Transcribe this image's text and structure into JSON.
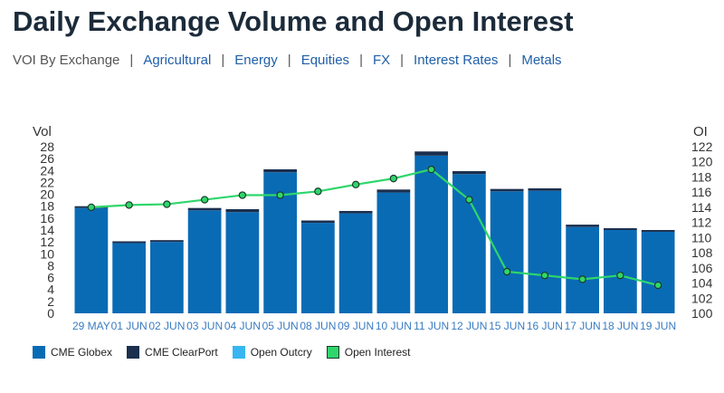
{
  "page": {
    "title": "Daily Exchange Volume and Open Interest",
    "nav": {
      "current": "VOI By Exchange",
      "links": [
        "Agricultural",
        "Energy",
        "Equities",
        "FX",
        "Interest Rates",
        "Metals"
      ]
    }
  },
  "colors": {
    "globex": "#0a6bb5",
    "clearport": "#1b2f4e",
    "outcry": "#38b6f0",
    "oi_line": "#2fd66b",
    "oi_point": "#2fd66b",
    "tick_text": "#333333",
    "x_tick_text": "#3a7cc2",
    "grid": "#e6e6e6"
  },
  "chart_data": {
    "type": "bar",
    "categories": [
      "29 MAY",
      "01 JUN",
      "02 JUN",
      "03 JUN",
      "04 JUN",
      "05 JUN",
      "08 JUN",
      "09 JUN",
      "10 JUN",
      "11 JUN",
      "12 JUN",
      "15 JUN",
      "16 JUN",
      "17 JUN",
      "18 JUN",
      "19 JUN"
    ],
    "series": [
      {
        "name": "CME Globex",
        "kind": "bar",
        "axis": "left",
        "values": [
          17.7,
          11.8,
          12.0,
          17.3,
          17.0,
          23.7,
          15.2,
          16.8,
          20.3,
          26.5,
          23.4,
          20.5,
          20.6,
          14.5,
          14.0,
          13.7
        ]
      },
      {
        "name": "CME ClearPort",
        "kind": "bar",
        "axis": "left",
        "values": [
          0.3,
          0.3,
          0.3,
          0.4,
          0.5,
          0.5,
          0.4,
          0.4,
          0.5,
          0.7,
          0.5,
          0.4,
          0.4,
          0.4,
          0.3,
          0.3
        ]
      },
      {
        "name": "Open Outcry",
        "kind": "bar",
        "axis": "left",
        "values": [
          0,
          0,
          0,
          0,
          0,
          0,
          0,
          0,
          0,
          0,
          0,
          0,
          0,
          0,
          0,
          0
        ]
      },
      {
        "name": "Open Interest",
        "kind": "line",
        "axis": "right",
        "values": [
          114.0,
          114.3,
          114.4,
          115.0,
          115.6,
          115.6,
          116.1,
          117.0,
          117.8,
          119.0,
          115.0,
          105.5,
          105.0,
          104.5,
          105.0,
          103.7
        ]
      }
    ],
    "ylabel": "Vol",
    "ylabel_right": "OI",
    "ylim": [
      0,
      28
    ],
    "yticks": [
      0,
      2,
      4,
      6,
      8,
      10,
      12,
      14,
      16,
      18,
      20,
      22,
      24,
      26,
      28
    ],
    "ylim_right": [
      100,
      122
    ],
    "yticks_right": [
      100,
      102,
      104,
      106,
      108,
      110,
      112,
      114,
      116,
      118,
      120,
      122
    ],
    "grid": false,
    "legend": "bottom-left",
    "legend_items": [
      "CME Globex",
      "CME ClearPort",
      "Open Outcry",
      "Open Interest"
    ]
  }
}
